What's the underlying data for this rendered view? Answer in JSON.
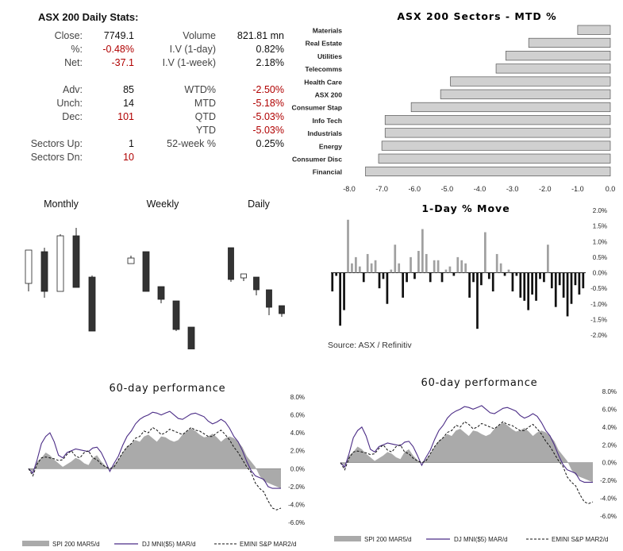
{
  "stats": {
    "title": "ASX 200 Daily Stats:",
    "left": [
      {
        "label": "Close:",
        "value": "7749.1",
        "neg": false
      },
      {
        "label": "%:",
        "value": "-0.48%",
        "neg": true
      },
      {
        "label": "Net:",
        "value": "-37.1",
        "neg": true
      },
      {
        "label": "",
        "value": "",
        "neg": false
      },
      {
        "label": "Adv:",
        "value": "85",
        "neg": false
      },
      {
        "label": "Unch:",
        "value": "14",
        "neg": false
      },
      {
        "label": "Dec:",
        "value": "101",
        "neg": true
      },
      {
        "label": "",
        "value": "",
        "neg": false
      },
      {
        "label": "Sectors Up:",
        "value": "1",
        "neg": false
      },
      {
        "label": "Sectors Dn:",
        "value": "10",
        "neg": true
      }
    ],
    "right": [
      {
        "label": "Volume",
        "value": "821.81 mn",
        "neg": false
      },
      {
        "label": "I.V (1-day)",
        "value": "0.82%",
        "neg": false
      },
      {
        "label": "I.V (1-week)",
        "value": "2.18%",
        "neg": false
      },
      {
        "label": "",
        "value": "",
        "neg": false
      },
      {
        "label": "WTD%",
        "value": "-2.50%",
        "neg": true
      },
      {
        "label": "MTD",
        "value": "-5.18%",
        "neg": true
      },
      {
        "label": "QTD",
        "value": "-5.03%",
        "neg": true
      },
      {
        "label": "YTD",
        "value": "-5.03%",
        "neg": true
      },
      {
        "label": "52-week %",
        "value": "0.25%",
        "neg": false
      }
    ]
  },
  "colors": {
    "negative": "#b00000",
    "bar_fill": "#d0d0d0",
    "bar_stroke": "#555555",
    "purple": "#4b2c86",
    "area": "#aaaaaa",
    "dark": "#333333"
  },
  "sectors_chart": {
    "type": "bar",
    "title": "ASX 200 Sectors - MTD %",
    "categories": [
      "Materials",
      "Real Estate",
      "Utilities",
      "Telecomms",
      "Health Care",
      "ASX 200",
      "Consumer Stap",
      "Info Tech",
      "Industrials",
      "Energy",
      "Consumer Disc",
      "Financial"
    ],
    "values": [
      -1.0,
      -2.5,
      -3.2,
      -3.5,
      -4.9,
      -5.2,
      -6.1,
      -6.9,
      -6.9,
      -7.0,
      -7.1,
      -7.5
    ],
    "xlim": [
      -8.0,
      0.0
    ],
    "xticks": [
      "-8.0",
      "-7.0",
      "-6.0",
      "-5.0",
      "-4.0",
      "-3.0",
      "-2.0",
      "-1.0",
      "0.0"
    ]
  },
  "candles": {
    "titles": [
      "Monthly",
      "Weekly",
      "Daily"
    ],
    "monthly": [
      [
        60,
        90,
        48,
        100
      ],
      [
        45,
        50,
        100,
        108
      ],
      [
        28,
        30,
        100,
        96
      ],
      [
        20,
        30,
        95,
        85
      ],
      [
        80,
        82,
        150,
        148
      ]
    ],
    "weekly": [
      [
        55,
        58,
        65,
        60
      ],
      [
        60,
        50,
        100,
        95
      ],
      [
        98,
        94,
        110,
        115
      ],
      [
        118,
        112,
        148,
        150
      ],
      [
        148,
        145,
        175,
        182
      ]
    ],
    "daily": [
      [
        48,
        45,
        85,
        88
      ],
      [
        80,
        78,
        83,
        87
      ],
      [
        85,
        82,
        98,
        105
      ],
      [
        100,
        98,
        120,
        130
      ],
      [
        120,
        118,
        128,
        132
      ]
    ]
  },
  "daily_move": {
    "type": "bar",
    "title": "1-Day % Move",
    "source": "Source: ASX / Refinitiv",
    "ylim": [
      -2.0,
      2.0
    ],
    "yticks": [
      "2.0%",
      "1.5%",
      "1.0%",
      "0.5%",
      "0.0%",
      "-0.5%",
      "-1.0%",
      "-1.5%",
      "-2.0%"
    ],
    "values": [
      -0.6,
      -0.1,
      -1.7,
      -1.2,
      1.7,
      0.3,
      0.5,
      0.2,
      -0.3,
      0.6,
      0.3,
      0.4,
      -0.5,
      -0.2,
      -1.0,
      0.1,
      0.9,
      0.3,
      -0.8,
      -0.3,
      0.5,
      -0.2,
      0.7,
      1.4,
      0.6,
      -0.3,
      0.4,
      0.4,
      -0.3,
      0.1,
      0.2,
      -0.1,
      0.5,
      0.4,
      0.3,
      -0.8,
      -0.3,
      -1.8,
      -0.4,
      1.3,
      -0.2,
      -0.6,
      0.6,
      0.3,
      -0.1,
      0.1,
      -0.6,
      -0.1,
      -0.8,
      -0.9,
      -1.2,
      -0.7,
      -0.9,
      -0.2,
      -0.3,
      0.9,
      -0.5,
      -1.1,
      -0.4,
      -0.8,
      -1.4,
      -1.0,
      -0.4,
      -0.7,
      -0.5
    ],
    "source_note": ""
  },
  "perf_chart": {
    "type": "area",
    "title": "60-day performance",
    "ylim": [
      -6.0,
      8.0
    ],
    "yticks": [
      "8.0%",
      "6.0%",
      "4.0%",
      "2.0%",
      "0.0%",
      "-2.0%",
      "-4.0%",
      "-6.0%"
    ],
    "legend": [
      "SPI 200 MAR5/d",
      "DJ MNI($5) MAR/d",
      "EMINI S&P MAR2/d"
    ],
    "series": [
      {
        "name": "SPI 200 MAR5/d",
        "values": [
          0,
          -0.3,
          0.8,
          1.2,
          1.8,
          1.5,
          1.0,
          0.6,
          0.2,
          0.5,
          0.8,
          1.2,
          1.0,
          0.6,
          0.4,
          1.2,
          1.5,
          0.8,
          0.3,
          0.0,
          0.4,
          1.0,
          1.8,
          2.5,
          2.8,
          3.2,
          3.0,
          3.6,
          3.8,
          3.4,
          3.0,
          3.6,
          3.5,
          3.2,
          3.0,
          3.2,
          3.8,
          4.2,
          4.5,
          4.2,
          3.8,
          3.5,
          3.6,
          3.9,
          3.5,
          3.0,
          3.4,
          3.6,
          3.4,
          3.0,
          2.4,
          1.4,
          0.8,
          0.2,
          -0.8,
          -1.4,
          -1.6,
          -1.8,
          -2.0,
          -2.2
        ]
      },
      {
        "name": "DJ MNI($5) MAR/d",
        "values": [
          0,
          -0.5,
          1.0,
          2.8,
          3.6,
          4.0,
          3.0,
          1.5,
          1.2,
          1.8,
          2.0,
          2.2,
          2.1,
          2.0,
          1.9,
          2.3,
          2.4,
          1.8,
          0.8,
          -0.3,
          0.6,
          1.4,
          2.6,
          3.6,
          4.2,
          5.0,
          5.5,
          5.8,
          6.0,
          6.3,
          6.2,
          6.0,
          6.2,
          6.4,
          6.0,
          5.6,
          5.5,
          5.8,
          6.1,
          6.2,
          6.0,
          5.8,
          5.3,
          5.0,
          5.2,
          5.5,
          5.2,
          4.5,
          3.6,
          3.0,
          2.0,
          0.8,
          -0.2,
          -0.8,
          -1.0,
          -1.2,
          -2.0,
          -2.2,
          -2.2,
          -2.2
        ]
      },
      {
        "name": "EMINI S&P MAR2/d",
        "values": [
          0,
          -0.8,
          0.5,
          1.2,
          1.3,
          1.2,
          1.1,
          0.9,
          1.0,
          1.6,
          2.0,
          1.4,
          1.2,
          1.8,
          2.0,
          1.2,
          1.0,
          0.5,
          0.2,
          0.0,
          0.2,
          1.0,
          1.8,
          2.4,
          2.8,
          3.4,
          3.6,
          4.2,
          4.0,
          4.6,
          4.3,
          3.8,
          4.0,
          4.4,
          4.2,
          4.0,
          3.8,
          4.2,
          4.6,
          4.3,
          4.2,
          3.9,
          3.6,
          3.6,
          4.0,
          4.3,
          3.8,
          3.2,
          2.4,
          1.8,
          1.0,
          0.2,
          -0.4,
          -1.6,
          -2.2,
          -2.6,
          -3.6,
          -4.4,
          -4.6,
          -4.4
        ]
      }
    ]
  }
}
